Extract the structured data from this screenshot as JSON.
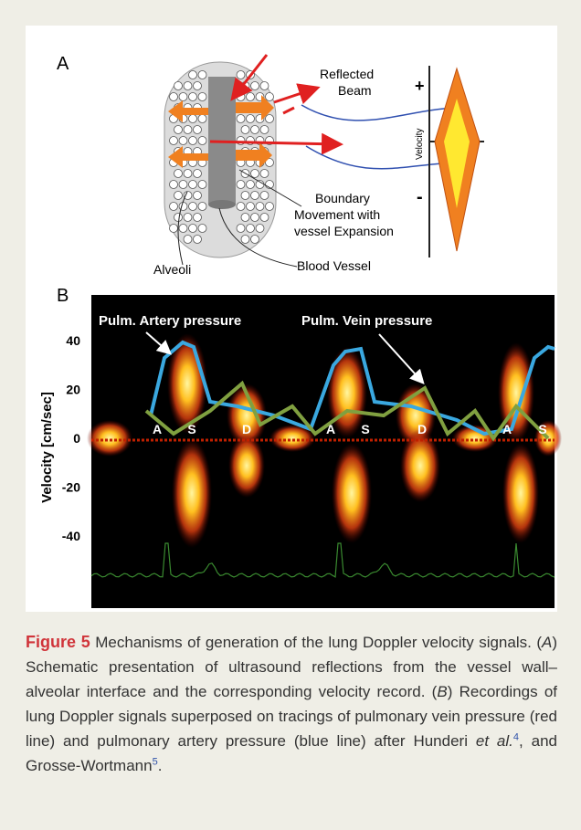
{
  "figure": {
    "panel_a": {
      "label": "A",
      "reflected_beam": [
        "Reflected",
        "Beam"
      ],
      "boundary": [
        "Boundary",
        "Movement with",
        "vessel Expansion"
      ],
      "alveoli": "Alveoli",
      "blood_vessel": "Blood Vessel",
      "plus": "+",
      "minus": "-",
      "velocity": "Velocity"
    },
    "panel_b": {
      "label": "B",
      "y_label": "Velocity  [cm/sec]",
      "yticks": [
        40,
        20,
        0,
        -20,
        -40
      ],
      "artery": "Pulm. Artery pressure",
      "vein": "Pulm. Vein pressure",
      "waves": [
        "A",
        "S",
        "D",
        "A",
        "S",
        "D",
        "A",
        "S"
      ]
    }
  },
  "caption": {
    "label": "Figure 5",
    "segments": [
      " Mechanisms of generation of the lung Doppler velocity signals. (",
      "A",
      ") Schematic presentation of ultrasound reflections from the vessel wall–alveolar interface and the corresponding velocity record. (",
      "B",
      ") Recordings of lung Doppler signals superposed on tracings of pulmonary vein pressure (red line) and pulmonary artery pressure (blue line) after Hunderi ",
      "et al.",
      "4",
      ", and Grosse-Wortmann",
      "5",
      "."
    ]
  }
}
